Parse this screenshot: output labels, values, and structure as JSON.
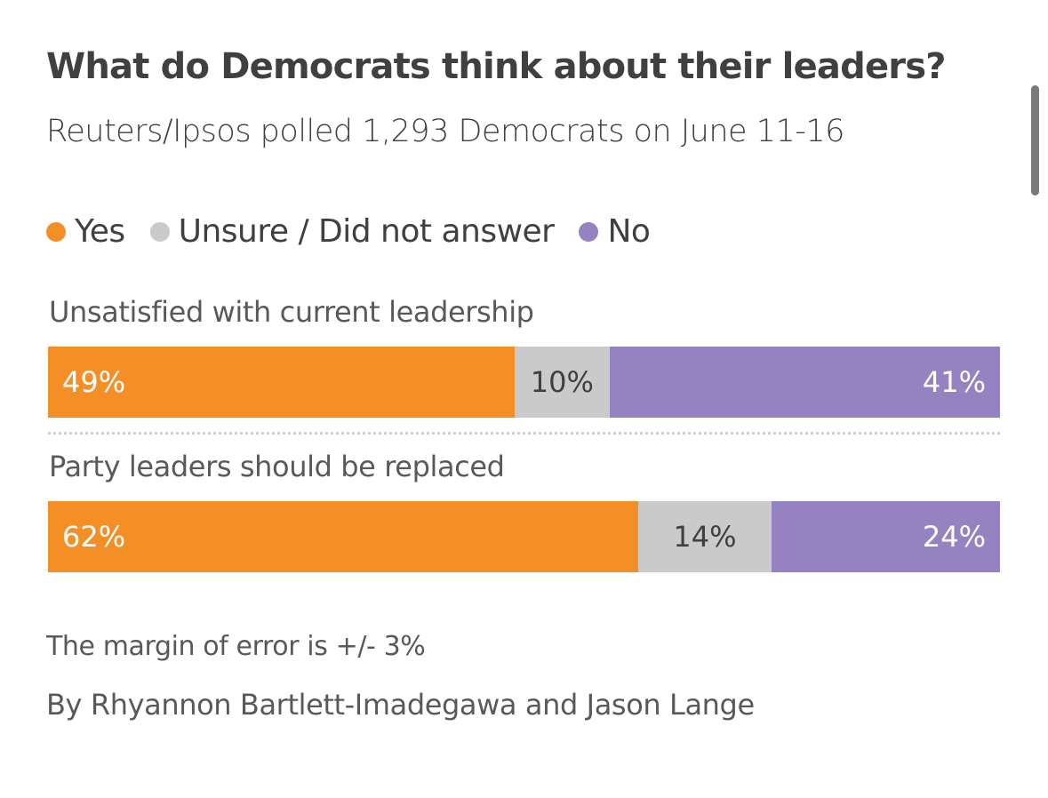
{
  "chart_data": {
    "type": "bar",
    "orientation": "horizontal-stacked-100",
    "title": "What do Democrats think about their leaders?",
    "subtitle": "Reuters/Ipsos polled 1,293 Democrats on June 11-16",
    "categories": [
      "Unsatisfied with current leadership",
      "Party leaders should be replaced"
    ],
    "series": [
      {
        "name": "Yes",
        "color": "#f48f27",
        "values": [
          49,
          62
        ],
        "labels": [
          "49%",
          "62%"
        ]
      },
      {
        "name": "Unsure / Did not answer",
        "color": "#cacaca",
        "values": [
          10,
          14
        ],
        "labels": [
          "10%",
          "14%"
        ]
      },
      {
        "name": "No",
        "color": "#9583c1",
        "values": [
          41,
          24
        ],
        "labels": [
          "41%",
          "24%"
        ]
      }
    ],
    "xlim": [
      0,
      100
    ],
    "legend": "top-left",
    "grid": false
  },
  "legend": [
    {
      "label": "Yes",
      "color": "#f48f27"
    },
    {
      "label": "Unsure / Did not answer",
      "color": "#cacaca"
    },
    {
      "label": "No",
      "color": "#9583c1"
    }
  ],
  "footer": {
    "note": "The margin of error is +/- 3%",
    "byline": "By Rhyannon Bartlett-Imadegawa and Jason Lange"
  }
}
